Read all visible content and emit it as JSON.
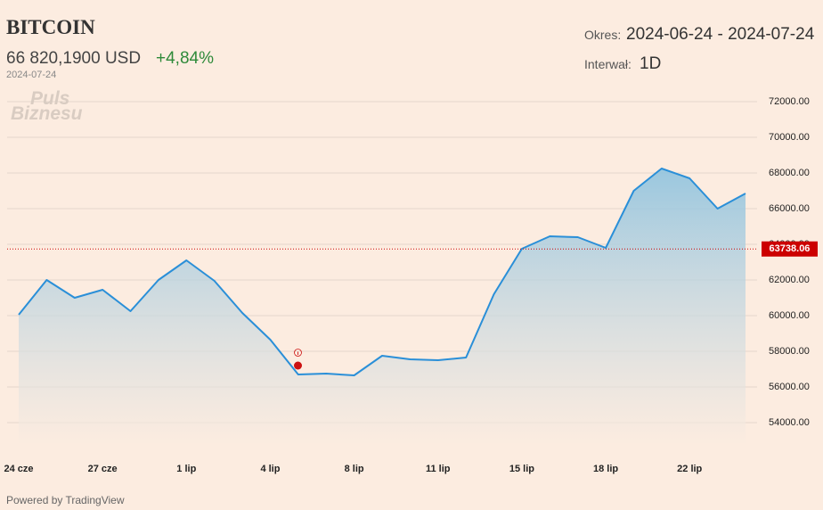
{
  "header": {
    "title": "BITCOIN",
    "price": "66 820,1900 USD",
    "change": "+4,84%",
    "date": "2024-07-24",
    "period_label": "Okres:",
    "period": "2024-06-24 - 2024-07-24",
    "interval_label": "Interwał:",
    "interval": "1D",
    "watermark": [
      "Puls",
      "Biznesu"
    ],
    "footer": "Powered by TradingView"
  },
  "chart_data": {
    "type": "area",
    "categories": [
      "24 cze",
      null,
      null,
      "27 cze",
      null,
      null,
      "1 lip",
      null,
      null,
      "4 lip",
      null,
      null,
      "8 lip",
      null,
      null,
      "11 lip",
      null,
      null,
      "15 lip",
      null,
      null,
      "18 lip",
      null,
      null,
      "22 lip",
      null,
      null
    ],
    "series": [
      {
        "name": "BITCOIN",
        "color": "#2a8fd8",
        "values": [
          60050,
          62000,
          61000,
          61450,
          60250,
          62000,
          63100,
          61950,
          60150,
          58650,
          56700,
          56750,
          56650,
          57750,
          57550,
          57500,
          57650,
          61200,
          63750,
          64450,
          64400,
          63800,
          67000,
          68250,
          67700,
          66000,
          66850
        ]
      }
    ],
    "ylim": [
      52700,
      72700
    ],
    "yticks": [
      {
        "value": 54000,
        "label": "54000.00"
      },
      {
        "value": 56000,
        "label": "56000.00"
      },
      {
        "value": 58000,
        "label": "58000.00"
      },
      {
        "value": 60000,
        "label": "60000.00"
      },
      {
        "value": 62000,
        "label": "62000.00"
      },
      {
        "value": 64000,
        "label": "64000.00"
      },
      {
        "value": 66000,
        "label": "66000.00"
      },
      {
        "value": 68000,
        "label": "68000.00"
      },
      {
        "value": 70000,
        "label": "70000.00"
      },
      {
        "value": 72000,
        "label": "72000.00"
      }
    ],
    "price_line": 63738.06,
    "price_line_color": "#cc0000",
    "grid": true
  }
}
